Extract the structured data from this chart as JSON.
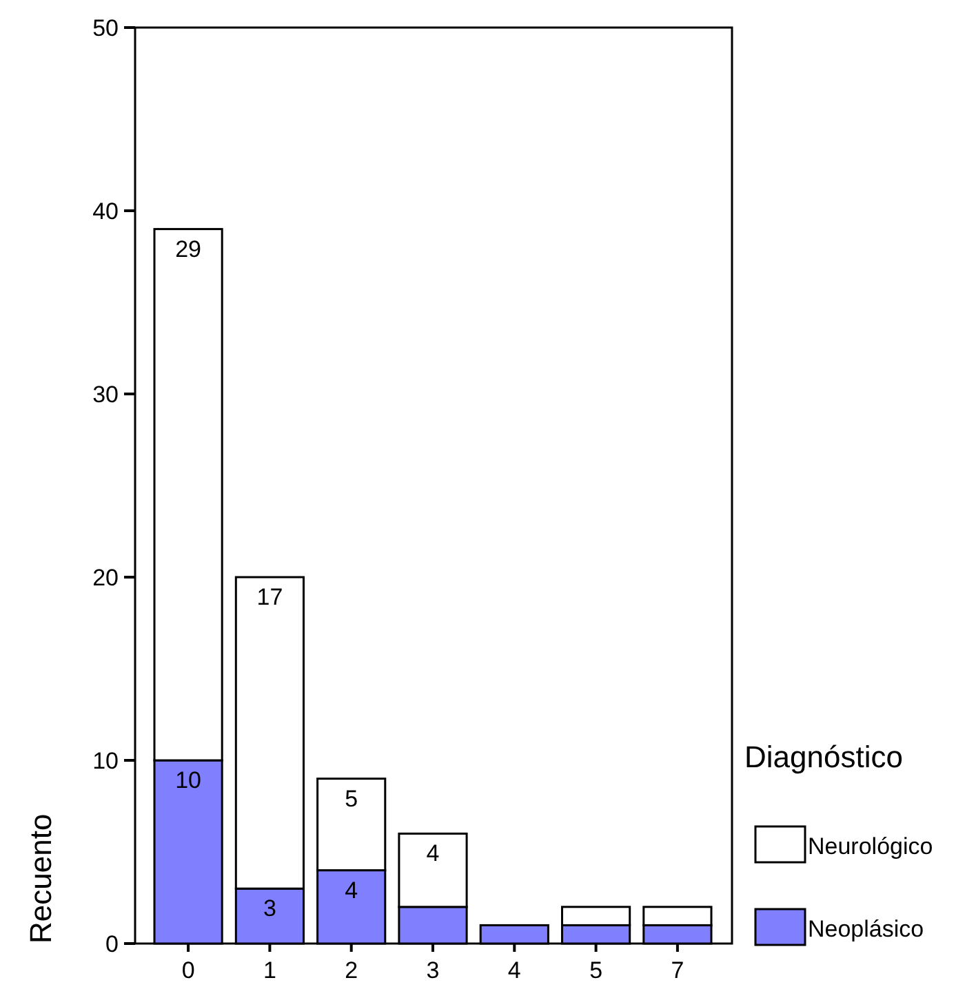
{
  "chart_data": {
    "type": "bar",
    "ylabel": "Recuento",
    "legend_title": "Diagnóstico",
    "categories": [
      "0",
      "1",
      "2",
      "3",
      "4",
      "5",
      "7"
    ],
    "stacked": true,
    "ylim": [
      0,
      50
    ],
    "yticks": [
      0,
      10,
      20,
      30,
      40,
      50
    ],
    "grid": false,
    "legend": "right",
    "series": [
      {
        "name": "Neoplásico",
        "color": "#8080ff",
        "values": [
          10,
          3,
          4,
          2,
          1,
          1,
          1
        ],
        "value_labels": [
          "10",
          "3",
          "4",
          null,
          null,
          null,
          null
        ]
      },
      {
        "name": "Neurológico",
        "color": "#ffffff",
        "values": [
          29,
          17,
          5,
          4,
          0,
          1,
          1
        ],
        "value_labels": [
          "29",
          "17",
          "5",
          "4",
          null,
          null,
          null
        ]
      }
    ]
  }
}
